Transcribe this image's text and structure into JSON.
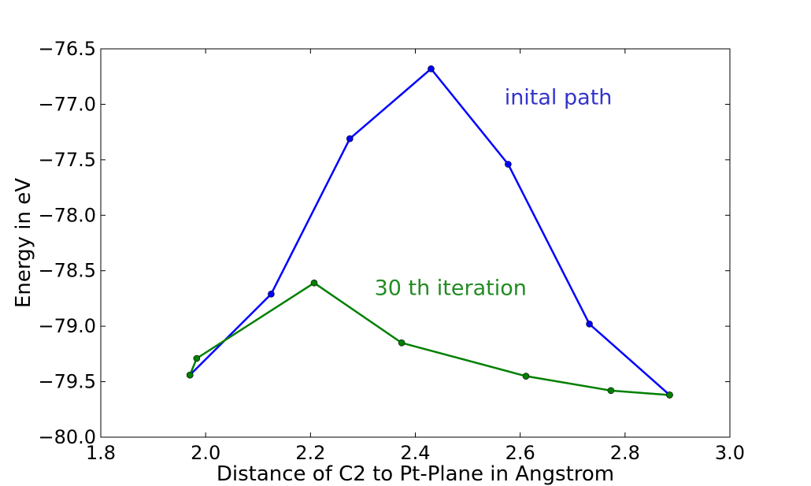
{
  "chart_data": {
    "type": "line",
    "title": "",
    "xlabel": "Distance of C2 to Pt-Plane in Angstrom",
    "ylabel": "Energy in eV",
    "xlim": [
      1.8,
      3.0
    ],
    "ylim": [
      -80.0,
      -76.5
    ],
    "x_ticks": [
      1.8,
      2.0,
      2.2,
      2.4,
      2.6,
      2.8,
      3.0
    ],
    "x_tick_labels": [
      "1.8",
      "2.0",
      "2.2",
      "2.4",
      "2.6",
      "2.8",
      "3.0"
    ],
    "y_ticks": [
      -76.5,
      -77.0,
      -77.5,
      -78.0,
      -78.5,
      -79.0,
      -79.5,
      -80.0
    ],
    "y_tick_labels": [
      "−76.5",
      "−77.0",
      "−77.5",
      "−78.0",
      "−78.5",
      "−79.0",
      "−79.5",
      "−80.0"
    ],
    "grid": false,
    "series": [
      {
        "color": "#0000ff",
        "x": [
          1.97,
          2.125,
          2.275,
          2.43,
          2.577,
          2.732,
          2.885
        ],
        "y": [
          -79.44,
          -78.71,
          -77.31,
          -76.68,
          -77.54,
          -78.98,
          -79.62
        ]
      },
      {
        "color": "#008000",
        "x": [
          1.97,
          1.983,
          2.207,
          2.374,
          2.611,
          2.773,
          2.885
        ],
        "y": [
          -79.44,
          -79.29,
          -78.61,
          -79.15,
          -79.45,
          -79.58,
          -79.62
        ]
      }
    ],
    "annotations": [
      {
        "text": "inital path",
        "x": 2.57,
        "y": -77.0,
        "color": "#3333cc"
      },
      {
        "text": "30 th iteration",
        "x": 2.322,
        "y": -78.72,
        "color": "#228b22"
      }
    ]
  }
}
